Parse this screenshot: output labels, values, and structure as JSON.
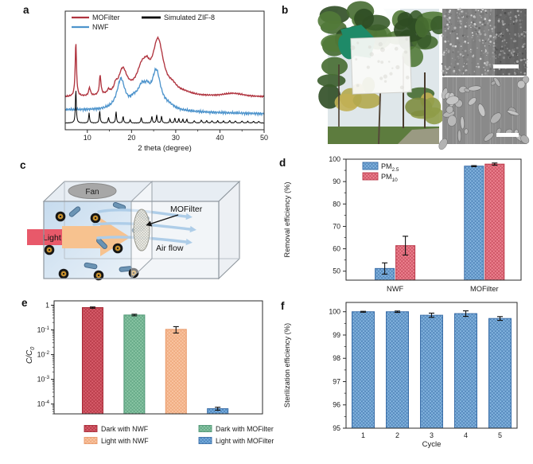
{
  "figure": {
    "background": "#ffffff",
    "panels": [
      {
        "id": "a",
        "label": "a"
      },
      {
        "id": "b",
        "label": "b"
      },
      {
        "id": "c",
        "label": "c"
      },
      {
        "id": "d",
        "label": "d"
      },
      {
        "id": "e",
        "label": "e"
      },
      {
        "id": "f",
        "label": "f"
      }
    ]
  },
  "chart_data": [
    {
      "id": "a",
      "panel": "a",
      "type": "line",
      "title": "",
      "xlabel": "2 theta (degree)",
      "ylabel": "",
      "xlim": [
        5,
        50
      ],
      "xticks": [
        10,
        20,
        30,
        40,
        50
      ],
      "xticks_minor": [
        15,
        25,
        35,
        45
      ],
      "grid": false,
      "legend_position": "top-inside",
      "legend": [
        {
          "label": "MOFilter",
          "color": "#b0343f"
        },
        {
          "label": "NWF",
          "color": "#4e94cc"
        },
        {
          "label": "Simulated ZIF-8",
          "color": "#000000"
        }
      ],
      "series": [
        {
          "name": "MOFilter",
          "color": "#b0343f",
          "baseline": 0.27,
          "drift": 0,
          "noise": 0.007,
          "peaks": [
            [
              7.4,
              0.47,
              0.18
            ],
            [
              10.5,
              0.07,
              0.25
            ],
            [
              12.9,
              0.17,
              0.22
            ],
            [
              14.8,
              0.03,
              0.3
            ],
            [
              16.4,
              0.05,
              0.35
            ],
            [
              18.0,
              0.22,
              1.2
            ],
            [
              22.4,
              0.22,
              1.5
            ],
            [
              23.5,
              0.08,
              0.7
            ],
            [
              26.0,
              0.47,
              1.5
            ],
            [
              29.3,
              0.05,
              1.2
            ],
            [
              32.0,
              0.02,
              2.0
            ],
            [
              43.0,
              0.03,
              3.0
            ]
          ]
        },
        {
          "name": "NWF",
          "color": "#4e94cc",
          "baseline": 0.16,
          "drift": -0.035,
          "noise": 0.013,
          "peaks": [
            [
              17.6,
              0.26,
              1.1
            ],
            [
              20.5,
              0.05,
              1.0
            ],
            [
              22.4,
              0.18,
              1.3
            ],
            [
              23.6,
              0.07,
              0.6
            ],
            [
              25.6,
              0.33,
              1.2
            ],
            [
              28.5,
              0.03,
              1.5
            ]
          ]
        },
        {
          "name": "Simulated ZIF-8",
          "color": "#000000",
          "baseline": 0.045,
          "drift": 0,
          "noise": 0.002,
          "peaks": [
            [
              7.4,
              0.3,
              0.12
            ],
            [
              10.4,
              0.09,
              0.12
            ],
            [
              12.8,
              0.11,
              0.12
            ],
            [
              14.8,
              0.05,
              0.12
            ],
            [
              16.5,
              0.1,
              0.12
            ],
            [
              18.1,
              0.06,
              0.12
            ],
            [
              19.7,
              0.03,
              0.12
            ],
            [
              22.2,
              0.05,
              0.12
            ],
            [
              24.6,
              0.06,
              0.12
            ],
            [
              25.7,
              0.07,
              0.12
            ],
            [
              26.8,
              0.06,
              0.12
            ],
            [
              28.7,
              0.035,
              0.12
            ],
            [
              29.8,
              0.045,
              0.12
            ],
            [
              30.7,
              0.04,
              0.12
            ],
            [
              31.6,
              0.035,
              0.12
            ],
            [
              32.5,
              0.035,
              0.12
            ],
            [
              34.2,
              0.02,
              0.15
            ],
            [
              35.8,
              0.025,
              0.15
            ],
            [
              37.0,
              0.02,
              0.15
            ],
            [
              38.2,
              0.02,
              0.15
            ],
            [
              39.5,
              0.02,
              0.15
            ],
            [
              40.8,
              0.018,
              0.15
            ],
            [
              42.2,
              0.022,
              0.15
            ],
            [
              43.5,
              0.018,
              0.15
            ],
            [
              45.0,
              0.018,
              0.15
            ],
            [
              46.3,
              0.015,
              0.15
            ],
            [
              47.6,
              0.015,
              0.15
            ],
            [
              48.8,
              0.015,
              0.15
            ]
          ]
        }
      ]
    },
    {
      "id": "d",
      "panel": "d",
      "type": "bar",
      "ylabel": "Removal efficiency (%)",
      "ylim": [
        46,
        100
      ],
      "yticks": [
        50,
        60,
        70,
        80,
        90,
        100
      ],
      "yticks_minor": [
        55,
        65,
        75,
        85,
        95
      ],
      "categories": [
        "NWF",
        "MOFilter"
      ],
      "series": [
        {
          "name": "PM2.5",
          "label_main": "PM",
          "label_sub": "2.5",
          "fill": "#85b6e0",
          "edge": "#3a6ea8",
          "values": [
            51.2,
            96.9
          ],
          "errors": [
            2.5,
            0.25
          ]
        },
        {
          "name": "PM10",
          "label_main": "PM",
          "label_sub": "10",
          "fill": "#ee8492",
          "edge": "#bb3a4a",
          "values": [
            61.4,
            97.8
          ],
          "errors": [
            4.2,
            0.5
          ]
        }
      ]
    },
    {
      "id": "e",
      "panel": "e",
      "type": "bar",
      "yscale": "log",
      "ylabel_main": "C/C",
      "ylabel_sub": "0",
      "ylim": [
        4e-05,
        1.5
      ],
      "yticks": [
        1,
        0.1,
        0.01,
        0.001,
        0.0001
      ],
      "bars": [
        {
          "label": "Dark with NWF",
          "fill": "#d95f6d",
          "edge": "#a62835",
          "value": 0.8,
          "error": 0.05
        },
        {
          "label": "Dark with MOFilter",
          "fill": "#8cc7a6",
          "edge": "#4e9674",
          "value": 0.4,
          "error": 0.03
        },
        {
          "label": "Light with NWF",
          "fill": "#fac7a4",
          "edge": "#e9996a",
          "value": 0.105,
          "error": 0.03
        },
        {
          "label": "Light with MOFilter",
          "fill": "#79b0e0",
          "edge": "#3a6ea8",
          "value": 6.5e-05,
          "error": 9e-06
        }
      ]
    },
    {
      "id": "f",
      "panel": "f",
      "type": "bar",
      "xlabel": "Cycle",
      "ylabel": "Sterilization efficiency (%)",
      "ylim": [
        95,
        100.4
      ],
      "yticks": [
        95,
        96,
        97,
        98,
        99,
        100
      ],
      "yticks_minor": [
        95.5,
        96.5,
        97.5,
        98.5,
        99.5
      ],
      "categories": [
        "1",
        "2",
        "3",
        "4",
        "5"
      ],
      "values": [
        100.0,
        100.0,
        99.85,
        99.92,
        99.71
      ],
      "errors": [
        0.02,
        0.03,
        0.09,
        0.12,
        0.08
      ],
      "fill": "#85b6e0",
      "edge": "#3a6ea8"
    }
  ],
  "panel_b": {
    "regions": [
      {
        "name": "outdoor-photo-filter-sample"
      },
      {
        "name": "sem-image-top"
      },
      {
        "name": "sem-image-bottom"
      }
    ]
  },
  "panel_c": {
    "labels": {
      "fan": "Fan",
      "light": "Light",
      "filter": "MOFilter",
      "airflow": "Air flow"
    },
    "colors": {
      "light_beam": "#e8596a",
      "light_arrow": "#f7c28f",
      "chamber_from": "#c6dbee",
      "chamber_to": "#e9f1f8",
      "fan": "#a7a7a7",
      "bacteria": "#6b94b4",
      "bacteria_edge": "#44688a",
      "airflow_arrow": "#aecde8",
      "particle_ring": "#161616",
      "particle_core": "#c8912e"
    }
  }
}
